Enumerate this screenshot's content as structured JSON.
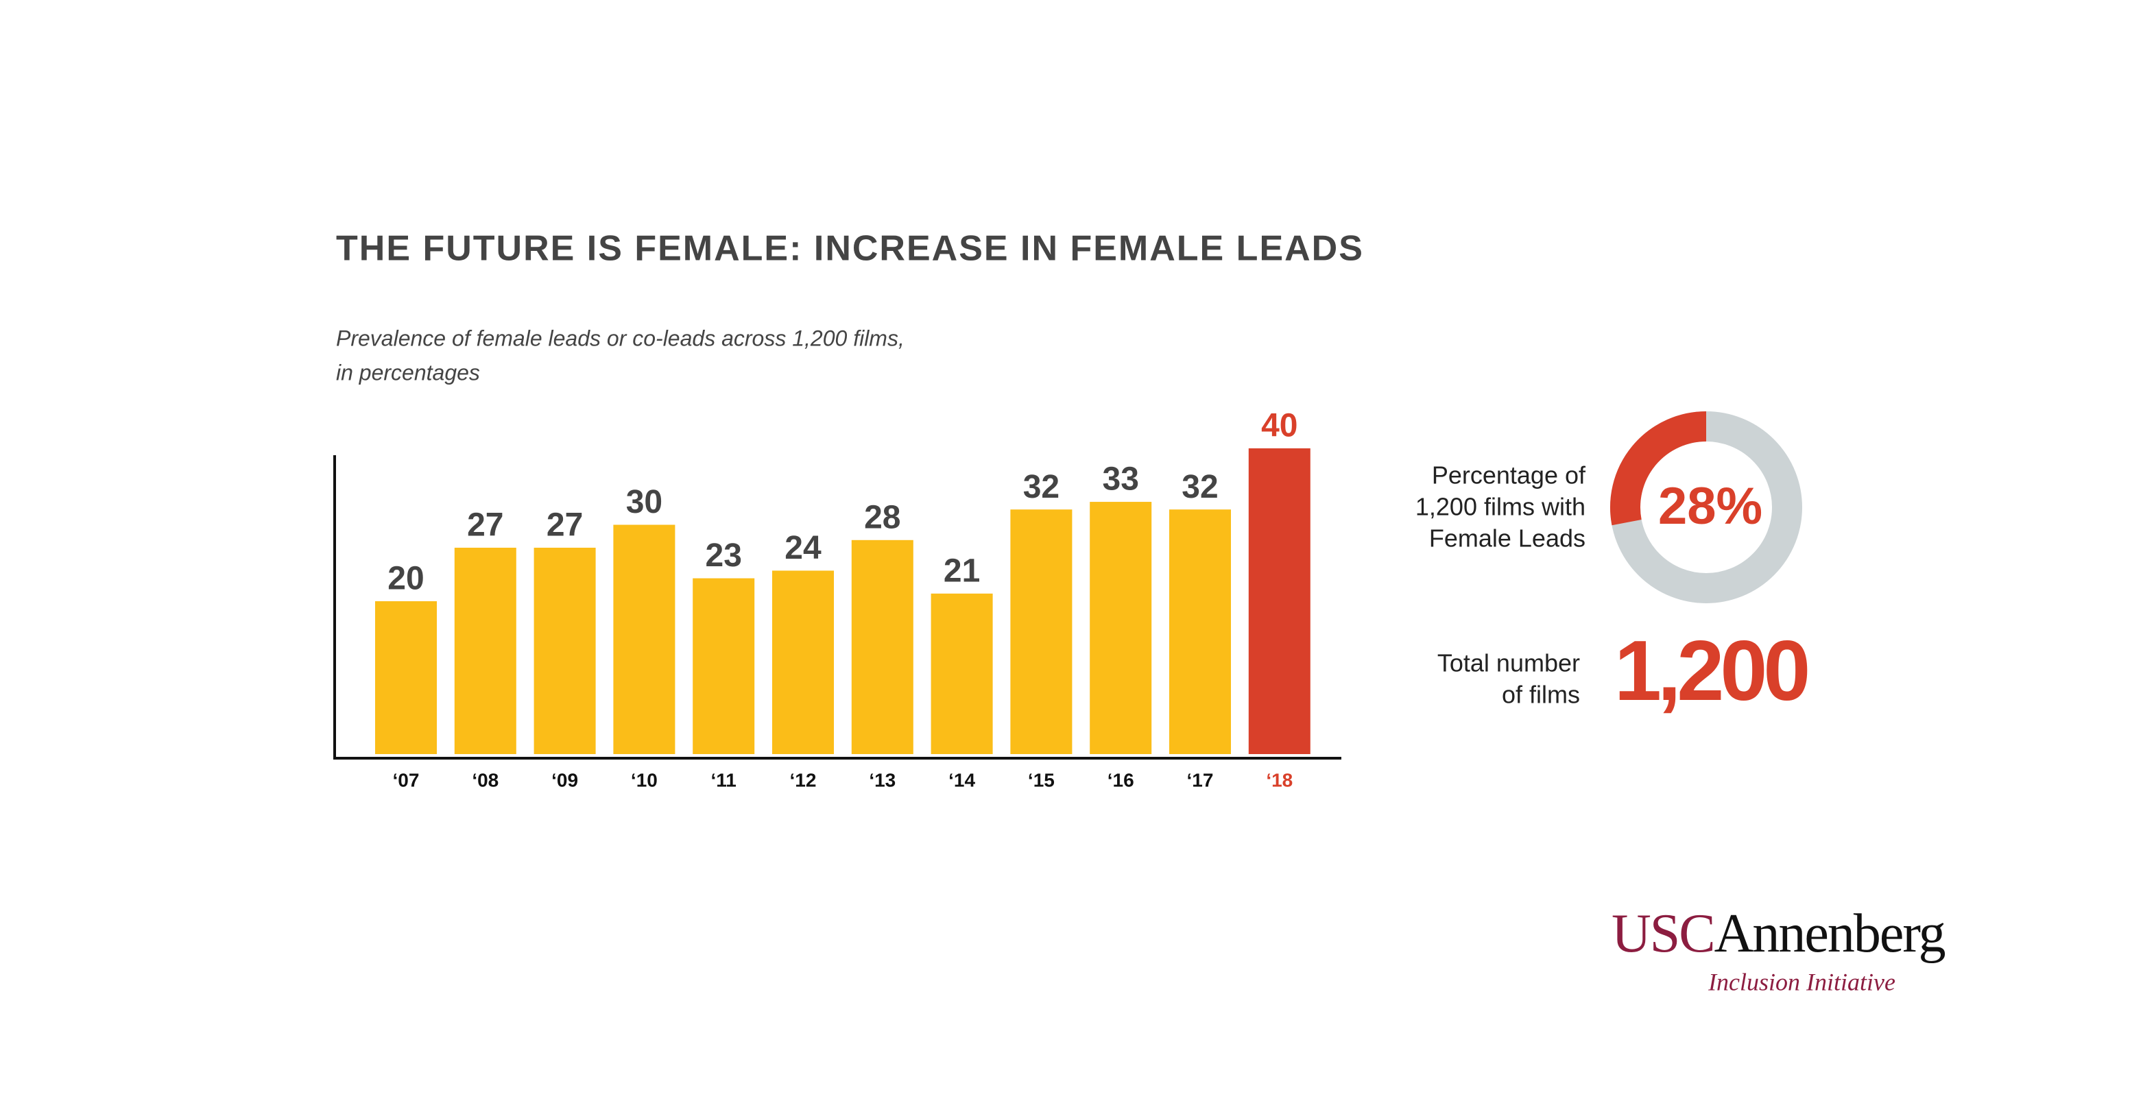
{
  "chart_data": {
    "type": "bar",
    "title": "THE FUTURE IS FEMALE: INCREASE IN FEMALE LEADS",
    "subtitle": [
      "Prevalence of female leads or co-leads across 1,200 films,",
      "in percentages"
    ],
    "categories": [
      "‘07",
      "‘08",
      "‘09",
      "‘10",
      "‘11",
      "‘12",
      "‘13",
      "‘14",
      "‘15",
      "‘16",
      "‘17",
      "‘18"
    ],
    "values": [
      20,
      27,
      27,
      30,
      23,
      24,
      28,
      21,
      32,
      33,
      32,
      40
    ],
    "colors": [
      "#fbbd18",
      "#fbbd18",
      "#fbbd18",
      "#fbbd18",
      "#fbbd18",
      "#fbbd18",
      "#fbbd18",
      "#fbbd18",
      "#fbbd18",
      "#fbbd18",
      "#fbbd18",
      "#d9402a"
    ],
    "ylim": [
      0,
      40
    ],
    "donut": {
      "label": [
        "Percentage of",
        "1,200 films with",
        "Female Leads"
      ],
      "value": 28,
      "value_label": "28%",
      "color": "#d9402a",
      "rest_color": "#ccd3d5"
    },
    "total": {
      "label": [
        "Total number",
        "of films"
      ],
      "value": 1200,
      "value_label": "1,200",
      "color": "#d9402a"
    },
    "logo": {
      "usc": "USC",
      "annenberg": "Annenberg",
      "initiative": "Inclusion Initiative"
    }
  }
}
